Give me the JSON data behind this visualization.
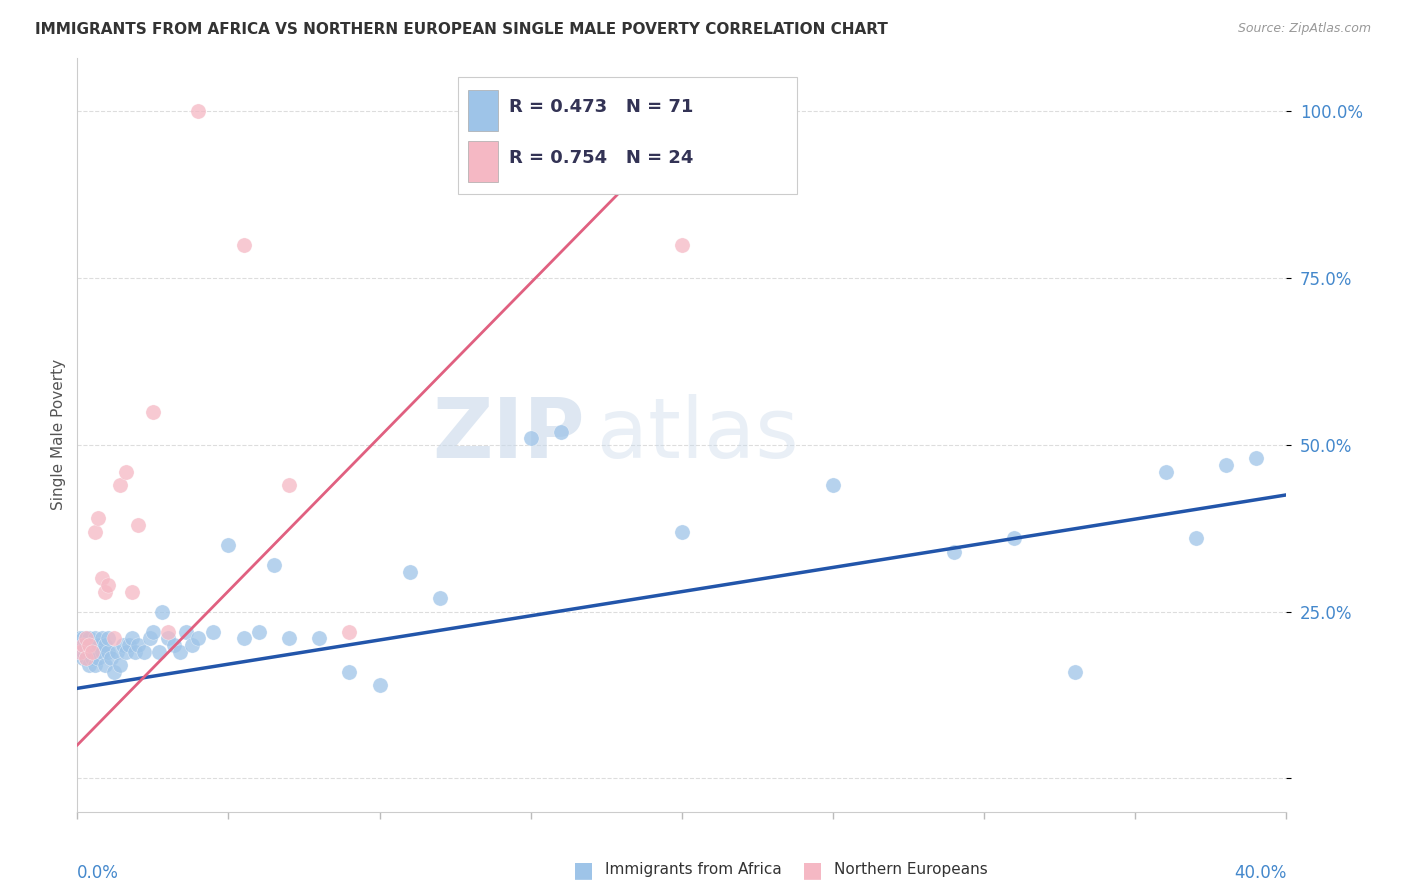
{
  "title": "IMMIGRANTS FROM AFRICA VS NORTHERN EUROPEAN SINGLE MALE POVERTY CORRELATION CHART",
  "source": "Source: ZipAtlas.com",
  "ylabel": "Single Male Poverty",
  "y_ticks": [
    0.0,
    0.25,
    0.5,
    0.75,
    1.0
  ],
  "y_tick_labels": [
    "",
    "25.0%",
    "50.0%",
    "75.0%",
    "100.0%"
  ],
  "x_range": [
    0.0,
    0.4
  ],
  "y_range": [
    -0.05,
    1.08
  ],
  "blue_R": 0.473,
  "blue_N": 71,
  "pink_R": 0.754,
  "pink_N": 24,
  "blue_color": "#9ec4e8",
  "pink_color": "#f5b8c4",
  "blue_line_color": "#2255aa",
  "pink_line_color": "#e06080",
  "legend_label_blue": "Immigrants from Africa",
  "legend_label_pink": "Northern Europeans",
  "watermark_zip": "ZIP",
  "watermark_atlas": "atlas",
  "background_color": "#ffffff",
  "grid_color": "#dddddd",
  "title_color": "#333333",
  "axis_label_color": "#4488cc",
  "legend_text_color": "#333355",
  "blue_scatter_x": [
    0.001,
    0.001,
    0.001,
    0.002,
    0.002,
    0.002,
    0.002,
    0.003,
    0.003,
    0.003,
    0.003,
    0.004,
    0.004,
    0.004,
    0.005,
    0.005,
    0.005,
    0.006,
    0.006,
    0.006,
    0.007,
    0.007,
    0.008,
    0.008,
    0.009,
    0.009,
    0.01,
    0.01,
    0.011,
    0.012,
    0.013,
    0.014,
    0.015,
    0.016,
    0.017,
    0.018,
    0.019,
    0.02,
    0.022,
    0.024,
    0.025,
    0.027,
    0.028,
    0.03,
    0.032,
    0.034,
    0.036,
    0.038,
    0.04,
    0.045,
    0.05,
    0.055,
    0.06,
    0.065,
    0.07,
    0.08,
    0.09,
    0.1,
    0.11,
    0.12,
    0.15,
    0.16,
    0.2,
    0.25,
    0.29,
    0.31,
    0.33,
    0.36,
    0.37,
    0.38,
    0.39
  ],
  "blue_scatter_y": [
    0.19,
    0.2,
    0.21,
    0.18,
    0.19,
    0.2,
    0.21,
    0.18,
    0.19,
    0.2,
    0.21,
    0.17,
    0.19,
    0.21,
    0.18,
    0.2,
    0.19,
    0.17,
    0.2,
    0.21,
    0.18,
    0.2,
    0.19,
    0.21,
    0.17,
    0.2,
    0.19,
    0.21,
    0.18,
    0.16,
    0.19,
    0.17,
    0.2,
    0.19,
    0.2,
    0.21,
    0.19,
    0.2,
    0.19,
    0.21,
    0.22,
    0.19,
    0.25,
    0.21,
    0.2,
    0.19,
    0.22,
    0.2,
    0.21,
    0.22,
    0.35,
    0.21,
    0.22,
    0.32,
    0.21,
    0.21,
    0.16,
    0.14,
    0.31,
    0.27,
    0.51,
    0.52,
    0.37,
    0.44,
    0.34,
    0.36,
    0.16,
    0.46,
    0.36,
    0.47,
    0.48
  ],
  "pink_scatter_x": [
    0.001,
    0.002,
    0.003,
    0.003,
    0.004,
    0.005,
    0.006,
    0.007,
    0.008,
    0.009,
    0.01,
    0.012,
    0.014,
    0.016,
    0.018,
    0.02,
    0.025,
    0.03,
    0.04,
    0.055,
    0.07,
    0.09,
    0.15,
    0.2
  ],
  "pink_scatter_y": [
    0.19,
    0.2,
    0.18,
    0.21,
    0.2,
    0.19,
    0.37,
    0.39,
    0.3,
    0.28,
    0.29,
    0.21,
    0.44,
    0.46,
    0.28,
    0.38,
    0.55,
    0.22,
    1.0,
    0.8,
    0.44,
    0.22,
    1.0,
    0.8
  ],
  "blue_line_x": [
    0.0,
    0.4
  ],
  "blue_line_y": [
    0.135,
    0.425
  ],
  "pink_line_x": [
    0.0,
    0.21
  ],
  "pink_line_y": [
    0.05,
    1.02
  ]
}
